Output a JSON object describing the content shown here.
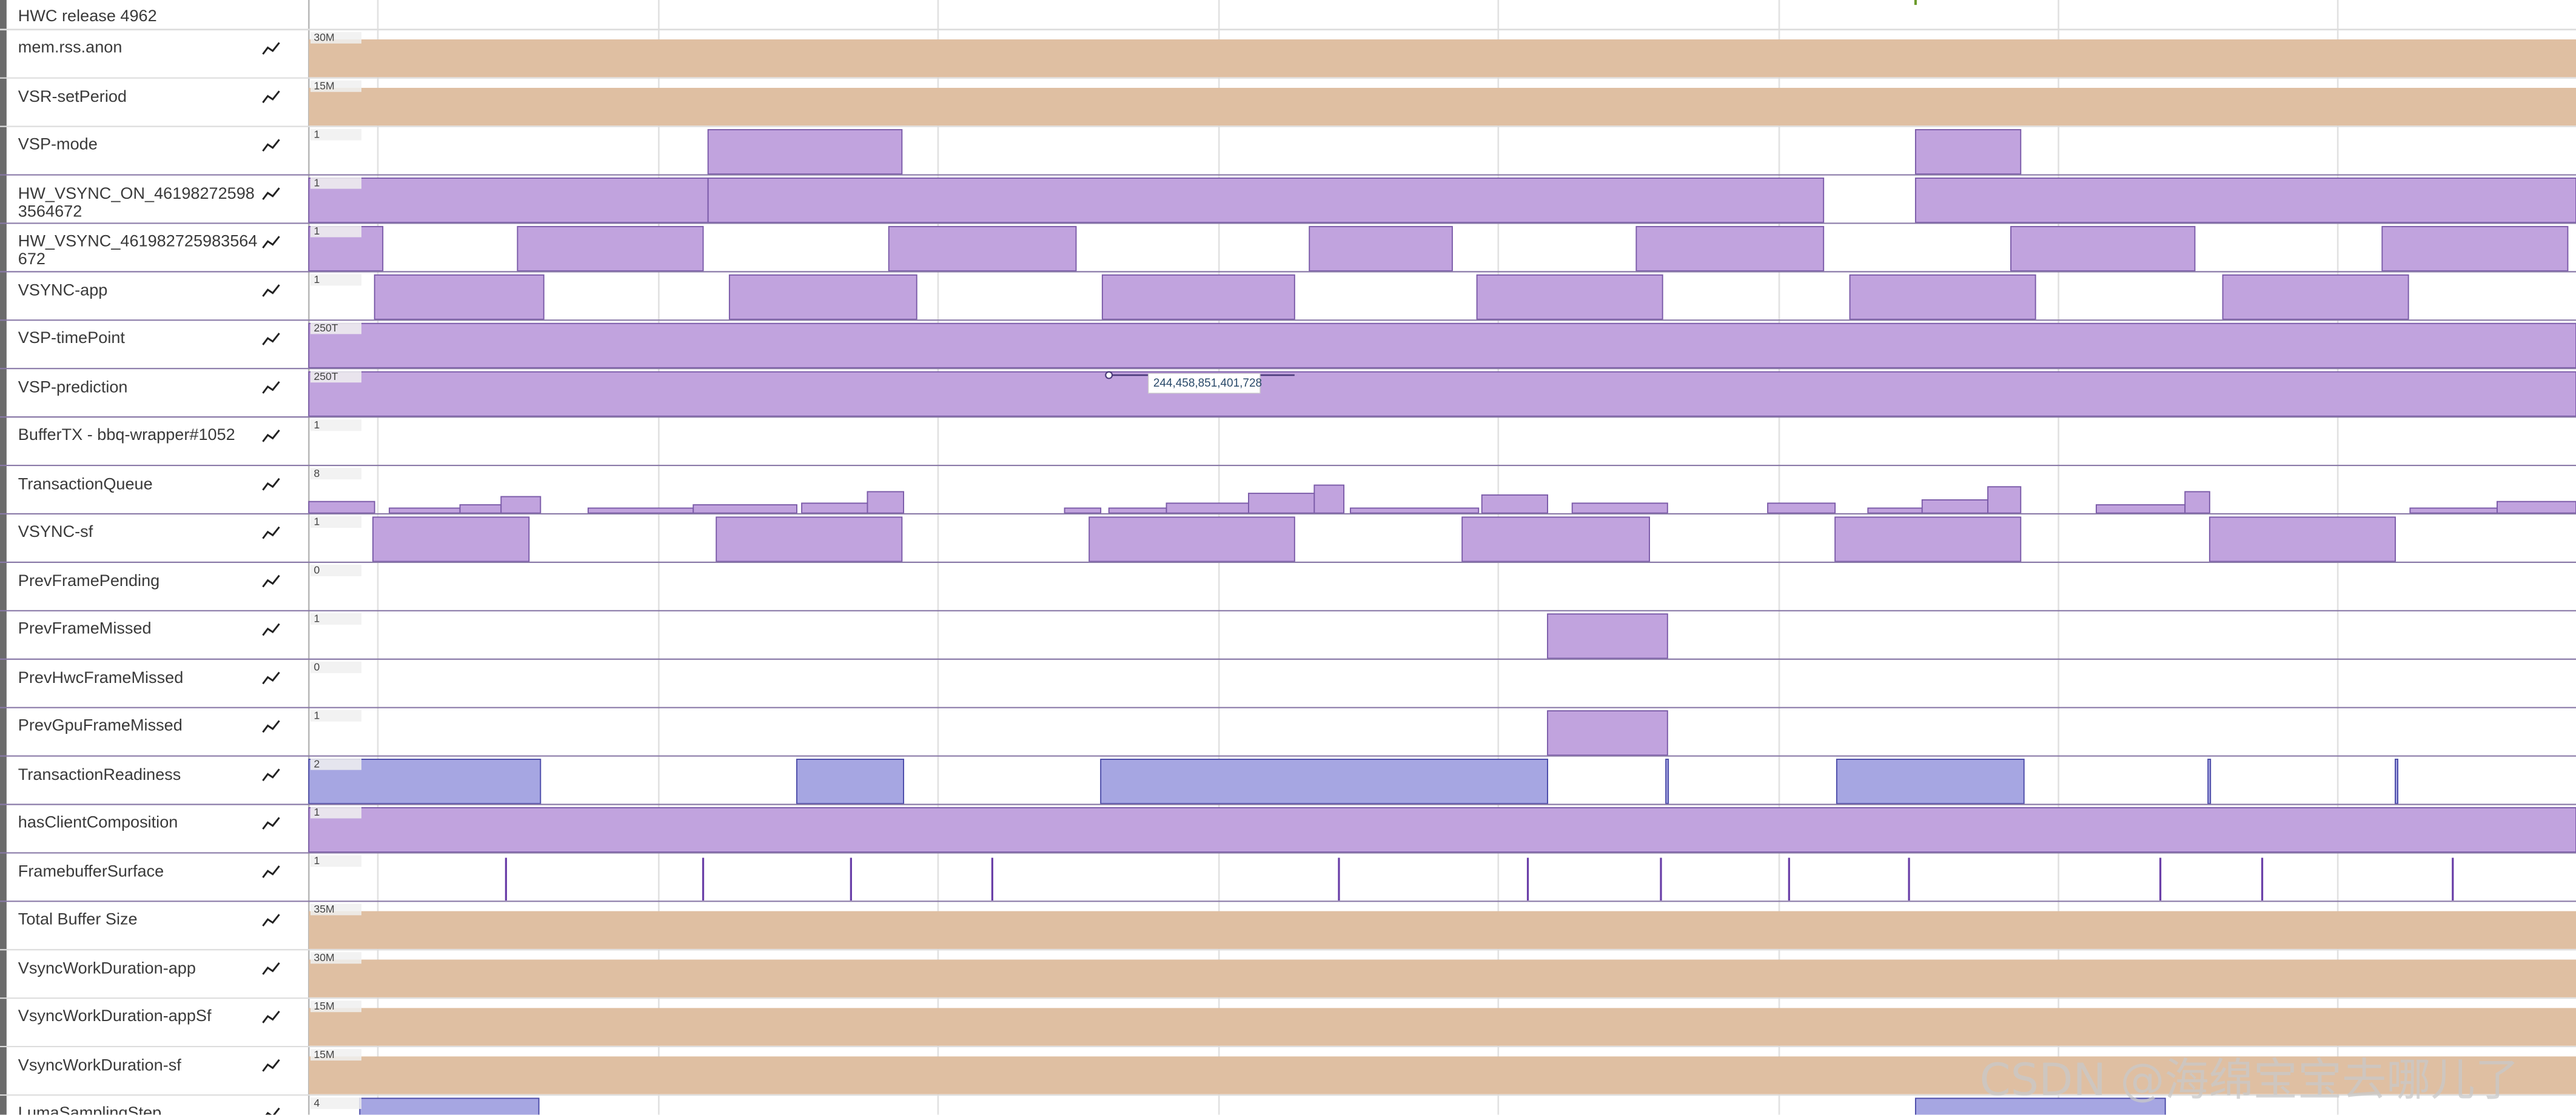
{
  "header_row": "HWC release 4962",
  "tracks": [
    {
      "name": "mem.rss.anon",
      "scale": "30M"
    },
    {
      "name": "VSR-setPeriod",
      "scale": "15M"
    },
    {
      "name": "VSP-mode",
      "scale": "1"
    },
    {
      "name": "HW_VSYNC_ON_461982725983564672",
      "scale": "1"
    },
    {
      "name": "HW_VSYNC_461982725983564672",
      "scale": "1"
    },
    {
      "name": "VSYNC-app",
      "scale": "1"
    },
    {
      "name": "VSP-timePoint",
      "scale": "250T"
    },
    {
      "name": "VSP-prediction",
      "scale": "250T"
    },
    {
      "name": "BufferTX - bbq-wrapper#1052",
      "scale": "1"
    },
    {
      "name": "TransactionQueue",
      "scale": "8"
    },
    {
      "name": "VSYNC-sf",
      "scale": "1"
    },
    {
      "name": "PrevFramePending",
      "scale": "0"
    },
    {
      "name": "PrevFrameMissed",
      "scale": "1"
    },
    {
      "name": "PrevHwcFrameMissed",
      "scale": "0"
    },
    {
      "name": "PrevGpuFrameMissed",
      "scale": "1"
    },
    {
      "name": "TransactionReadiness",
      "scale": "2"
    },
    {
      "name": "hasClientComposition",
      "scale": "1"
    },
    {
      "name": "FramebufferSurface",
      "scale": "1"
    },
    {
      "name": "Total Buffer Size",
      "scale": "35M"
    },
    {
      "name": "VsyncWorkDuration-app",
      "scale": "30M"
    },
    {
      "name": "VsyncWorkDuration-appSf",
      "scale": "15M"
    },
    {
      "name": "VsyncWorkDuration-sf",
      "scale": "15M"
    },
    {
      "name": "LumaSamplingStep",
      "scale": "4"
    }
  ],
  "tooltip": "244,458,851,401,728",
  "watermark": "CSDN @海绵宝宝去哪儿了"
}
